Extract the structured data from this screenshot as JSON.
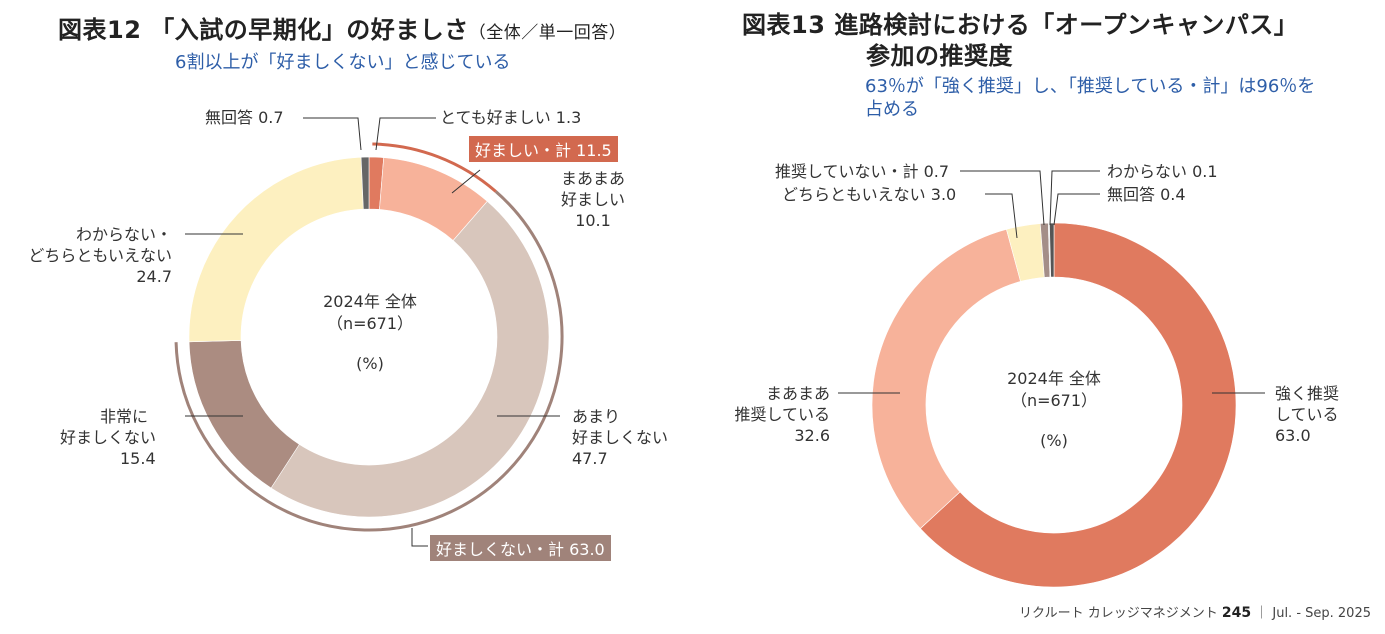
{
  "chart_data": [
    {
      "type": "pie",
      "donut": true,
      "title": "図表12 「入試の早期化」の好ましさ（全体／単一回答）",
      "subtitle": "6割以上が「好ましくない」と感じている",
      "center_text": [
        "2024年 全体",
        "（n=671）",
        "(%)"
      ],
      "categories": [
        "とても好ましい",
        "まあまあ好ましい",
        "あまり好ましくない",
        "非常に好ましくない",
        "わからない・どちらともいえない",
        "無回答"
      ],
      "values": [
        1.3,
        10.1,
        47.7,
        15.4,
        24.7,
        0.7
      ],
      "colors": [
        "#e07a5f",
        "#f7b29a",
        "#d8c6bc",
        "#ab8c81",
        "#fdf0c0",
        "#666666"
      ],
      "groups": [
        {
          "label": "好ましい・計 11.5",
          "color": "#d2694f"
        },
        {
          "label": "好ましくない・計 63.0",
          "color": "#a0837a"
        }
      ]
    },
    {
      "type": "pie",
      "donut": true,
      "title": "図表13 進路検討における「オープンキャンパス」参加の推奨度",
      "subtitle": "63％が「強く推奨」し、「推奨している・計」は96％を占める",
      "center_text": [
        "2024年 全体",
        "（n=671）",
        "(%)"
      ],
      "categories": [
        "強く推奨している",
        "まあまあ推奨している",
        "どちらともいえない",
        "推奨していない・計",
        "わからない",
        "無回答"
      ],
      "values": [
        63.0,
        32.6,
        3.0,
        0.7,
        0.1,
        0.4
      ],
      "colors": [
        "#e07a5f",
        "#f7b29a",
        "#fdf0c0",
        "#a48e88",
        "#d9d9d9",
        "#555555"
      ]
    }
  ],
  "fig12": {
    "title_main": "図表12 「入試の早期化」の好ましさ",
    "title_small": "（全体／単一回答）",
    "subtitle": "6割以上が「好ましくない」と感じている",
    "center_line1": "2024年 全体",
    "center_line2": "（n=671）",
    "center_line3": "(%)",
    "lbl_noans": "無回答 0.7",
    "lbl_very_good": "とても好ましい 1.3",
    "tag_good": "好ましい・計 11.5",
    "lbl_somewhat_good_1": "まあまあ",
    "lbl_somewhat_good_2": "好ましい",
    "lbl_somewhat_good_3": "10.1",
    "lbl_unknown_1": "わからない・",
    "lbl_unknown_2": "どちらともいえない",
    "lbl_unknown_3": "24.7",
    "lbl_not_very_1": "あまり",
    "lbl_not_very_2": "好ましくない",
    "lbl_not_very_3": "47.7",
    "lbl_very_bad_1": "非常に",
    "lbl_very_bad_2": "好ましくない",
    "lbl_very_bad_3": "15.4",
    "tag_bad": "好ましくない・計 63.0"
  },
  "fig13": {
    "title_line1": "図表13 進路検討における「オープンキャンパス」",
    "title_line2": "参加の推奨度",
    "subtitle_line1": "63％が「強く推奨」し、「推奨している・計」は96％を",
    "subtitle_line2": "占める",
    "center_line1": "2024年 全体",
    "center_line2": "（n=671）",
    "center_line3": "(%)",
    "lbl_not_rec": "推奨していない・計 0.7",
    "lbl_neutral": "どちらともいえない 3.0",
    "lbl_dontknow": "わからない 0.1",
    "lbl_noans": "無回答 0.4",
    "lbl_strong_1": "強く推奨",
    "lbl_strong_2": "している",
    "lbl_strong_3": "63.0",
    "lbl_somewhat_1": "まあまあ",
    "lbl_somewhat_2": "推奨している",
    "lbl_somewhat_3": "32.6"
  },
  "footer": {
    "publication": "リクルート カレッジマネジメント",
    "page": "245",
    "issue": "｜ Jul. - Sep. 2025"
  }
}
